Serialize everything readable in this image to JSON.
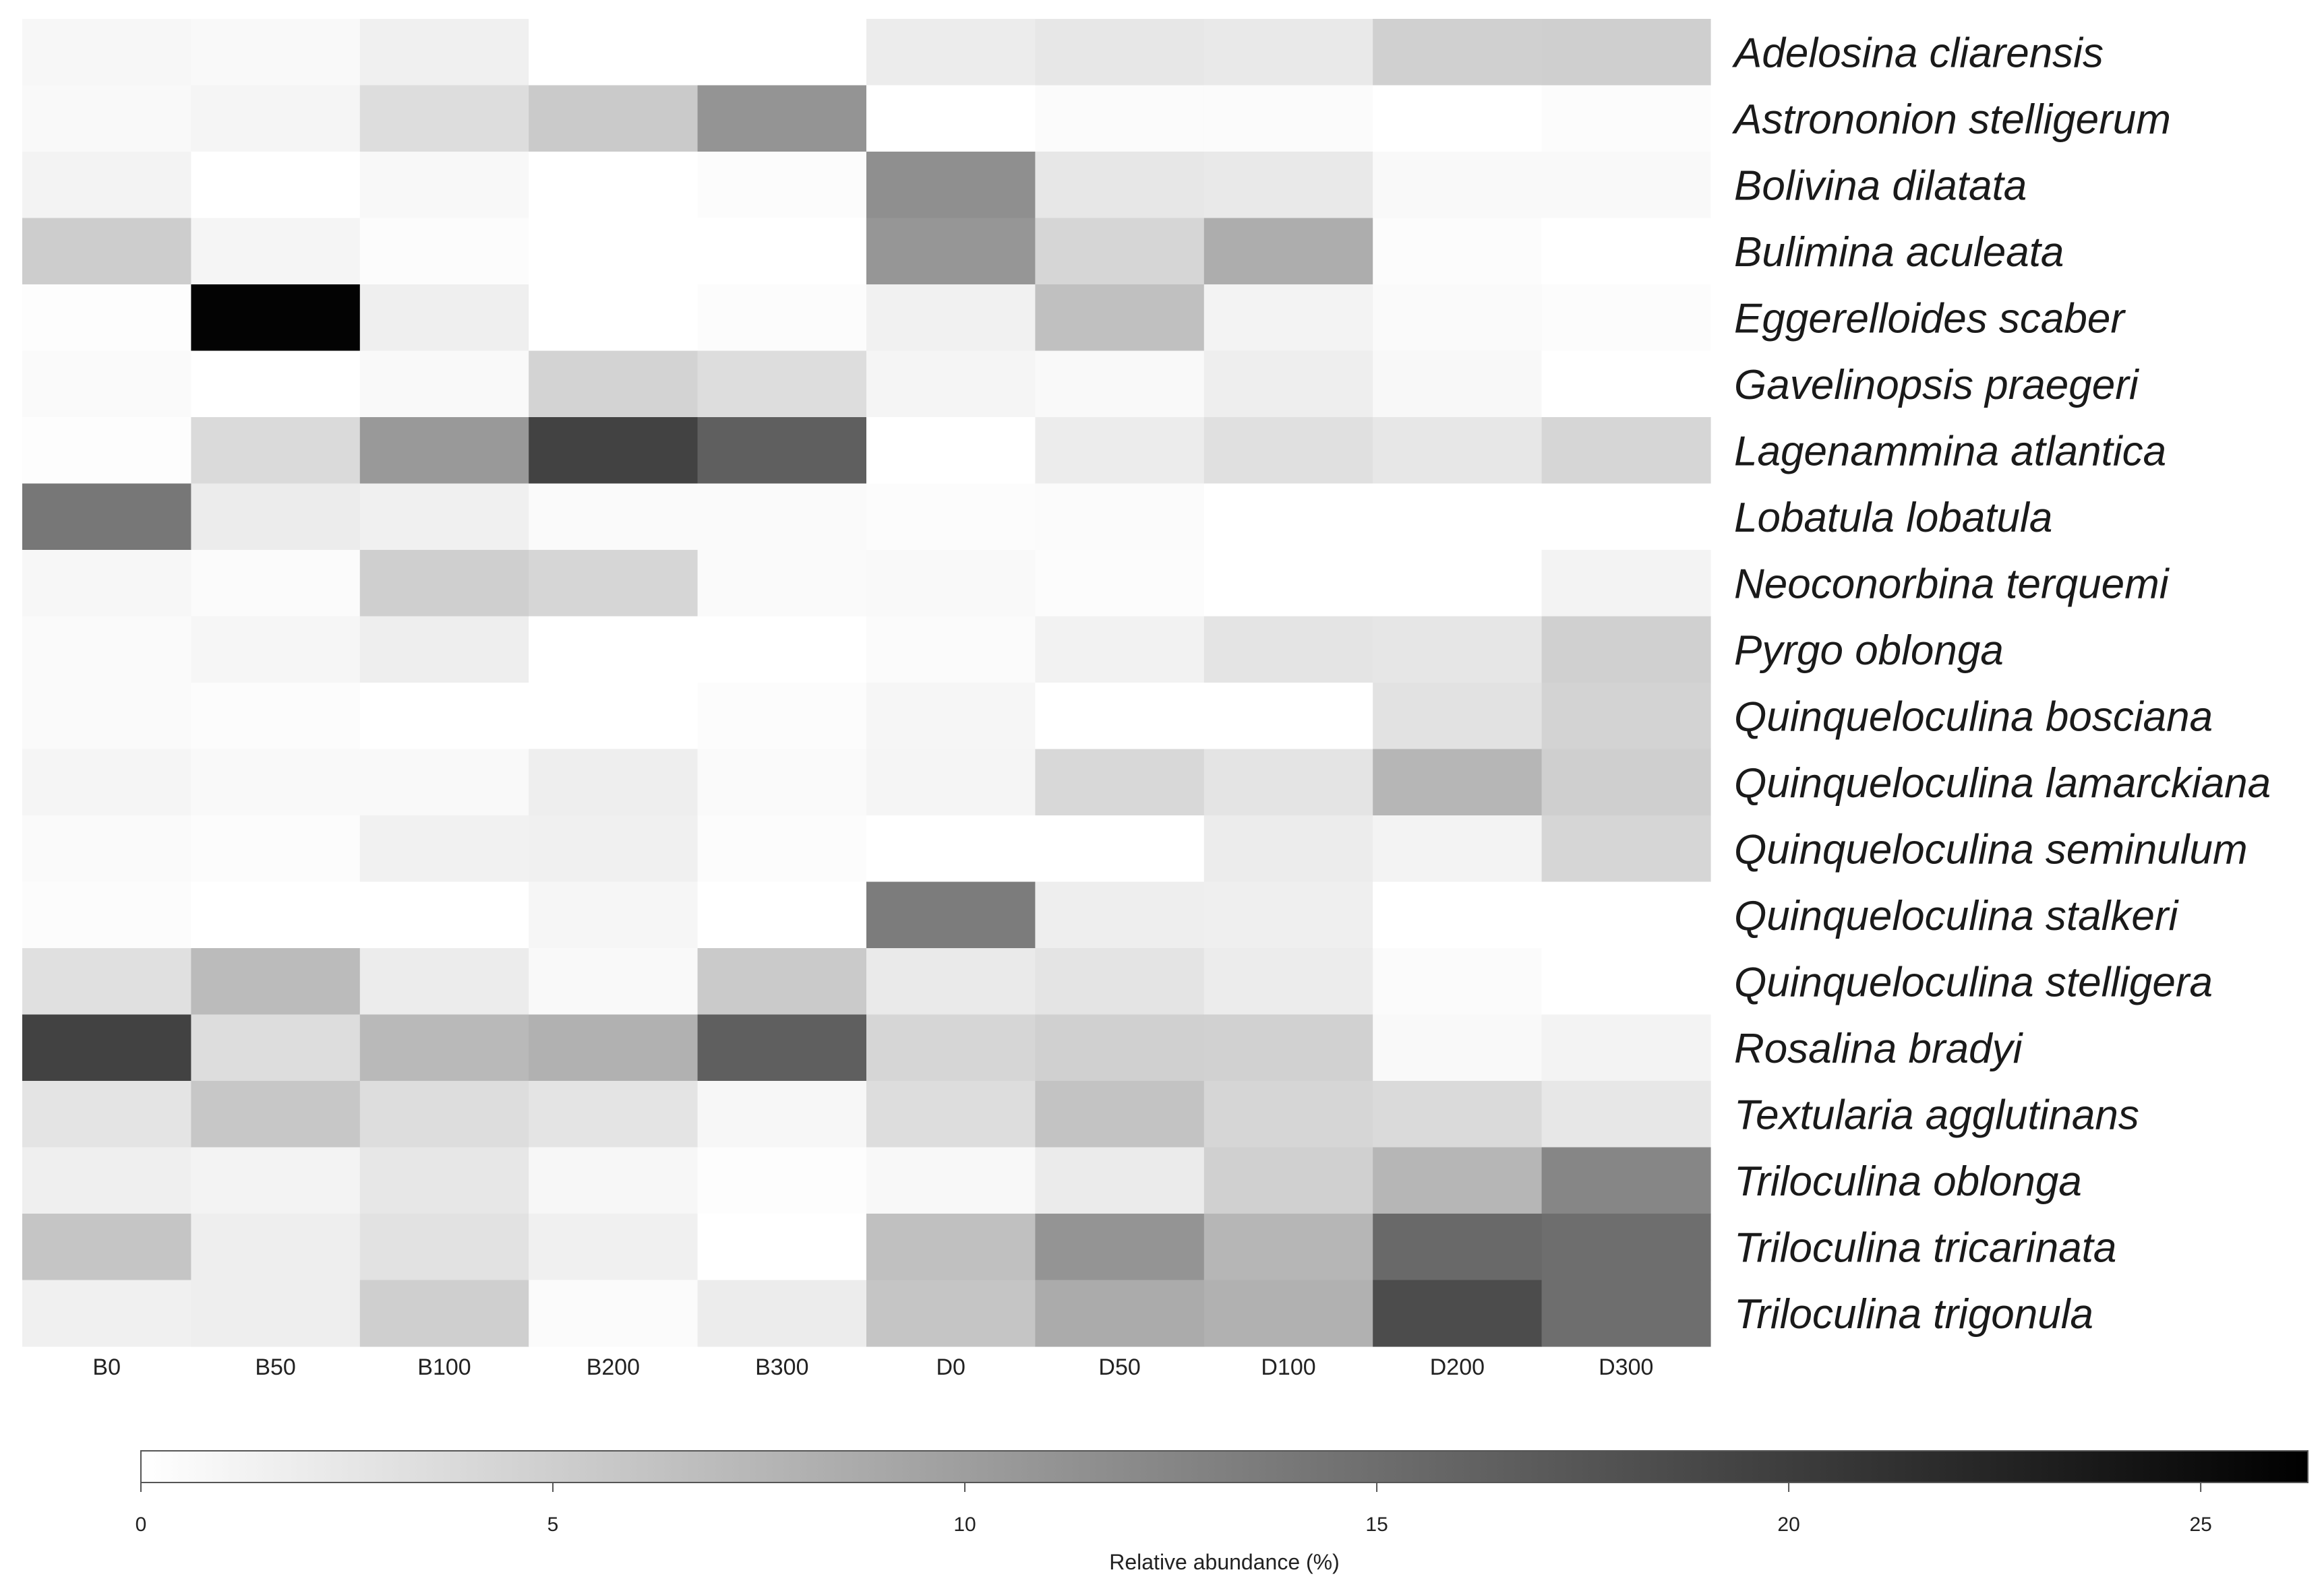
{
  "chart_data": {
    "type": "heatmap",
    "columns": [
      "B0",
      "B50",
      "B100",
      "B200",
      "B300",
      "D0",
      "D50",
      "D100",
      "D200",
      "D300"
    ],
    "rows": [
      "Adelosina cliarensis",
      "Astrononion stelligerum",
      "Bolivina dilatata",
      "Bulimina aculeata",
      "Eggerelloides scaber",
      "Gavelinopsis praegeri",
      "Lagenammina atlantica",
      "Lobatula lobatula",
      "Neoconorbina terquemi",
      "Pyrgo oblonga",
      "Quinqueloculina bosciana",
      "Quinqueloculina lamarckiana",
      "Quinqueloculina seminulum",
      "Quinqueloculina stalkeri",
      "Quinqueloculina stelligera",
      "Rosalina bradyi",
      "Textularia agglutinans",
      "Triloculina oblonga",
      "Triloculina tricarinata",
      "Triloculina trigonula"
    ],
    "values": [
      [
        0.8,
        0.6,
        1.5,
        0.0,
        0.0,
        2.0,
        2.5,
        2.3,
        4.8,
        5.0
      ],
      [
        0.6,
        1.0,
        3.5,
        5.5,
        11.0,
        0.0,
        0.4,
        0.4,
        0.0,
        0.3
      ],
      [
        1.2,
        0.0,
        0.7,
        0.0,
        0.3,
        11.5,
        2.5,
        2.3,
        0.6,
        0.6
      ],
      [
        5.2,
        1.0,
        0.3,
        0.0,
        0.0,
        10.8,
        4.2,
        8.5,
        0.3,
        0.0
      ],
      [
        0.2,
        26.0,
        1.6,
        0.0,
        0.3,
        1.4,
        6.5,
        1.2,
        0.5,
        0.3
      ],
      [
        0.5,
        0.0,
        0.6,
        4.5,
        3.5,
        1.0,
        0.6,
        1.8,
        0.7,
        0.0
      ],
      [
        0.2,
        3.8,
        10.5,
        19.5,
        16.5,
        0.0,
        2.0,
        3.2,
        2.5,
        4.2
      ],
      [
        14.0,
        2.0,
        1.5,
        0.5,
        0.5,
        0.3,
        0.4,
        0.0,
        0.0,
        0.0
      ],
      [
        0.8,
        0.4,
        5.0,
        4.2,
        0.5,
        0.6,
        0.3,
        0.0,
        0.0,
        1.2
      ],
      [
        0.5,
        0.9,
        1.8,
        0.0,
        0.0,
        0.4,
        1.3,
        2.8,
        2.6,
        4.8
      ],
      [
        0.5,
        0.3,
        0.0,
        0.0,
        0.3,
        0.9,
        0.0,
        0.0,
        3.0,
        4.5
      ],
      [
        1.0,
        0.6,
        0.6,
        1.8,
        0.5,
        1.0,
        4.0,
        2.8,
        7.5,
        5.0
      ],
      [
        0.5,
        0.3,
        1.4,
        1.5,
        0.3,
        0.0,
        0.0,
        2.0,
        1.2,
        4.2
      ],
      [
        0.3,
        0.0,
        0.0,
        0.9,
        0.0,
        13.5,
        1.8,
        1.6,
        0.0,
        0.0
      ],
      [
        3.2,
        7.0,
        2.0,
        0.6,
        5.5,
        2.2,
        2.8,
        2.0,
        0.4,
        0.0
      ],
      [
        19.5,
        3.5,
        7.2,
        8.0,
        16.5,
        4.2,
        4.8,
        4.7,
        0.6,
        1.2
      ],
      [
        2.8,
        5.8,
        3.5,
        2.8,
        0.8,
        3.5,
        6.2,
        4.2,
        3.8,
        2.5
      ],
      [
        1.7,
        1.2,
        2.5,
        0.8,
        0.2,
        0.7,
        2.1,
        4.8,
        7.5,
        12.5
      ],
      [
        6.0,
        1.8,
        3.0,
        1.5,
        0.0,
        6.5,
        11.0,
        7.5,
        15.5,
        15.0
      ],
      [
        1.5,
        1.8,
        5.0,
        0.4,
        2.0,
        6.0,
        8.7,
        8.0,
        18.5,
        15.0
      ]
    ],
    "colorbar": {
      "title": "Relative abundance (%)",
      "range": [
        0,
        26.3
      ],
      "ticks": [
        0,
        5,
        10,
        15,
        20,
        25
      ],
      "tick_labels": [
        "0",
        "5",
        "10",
        "15",
        "20",
        "25"
      ],
      "low_color": "#ffffff",
      "high_color": "#000000"
    }
  }
}
